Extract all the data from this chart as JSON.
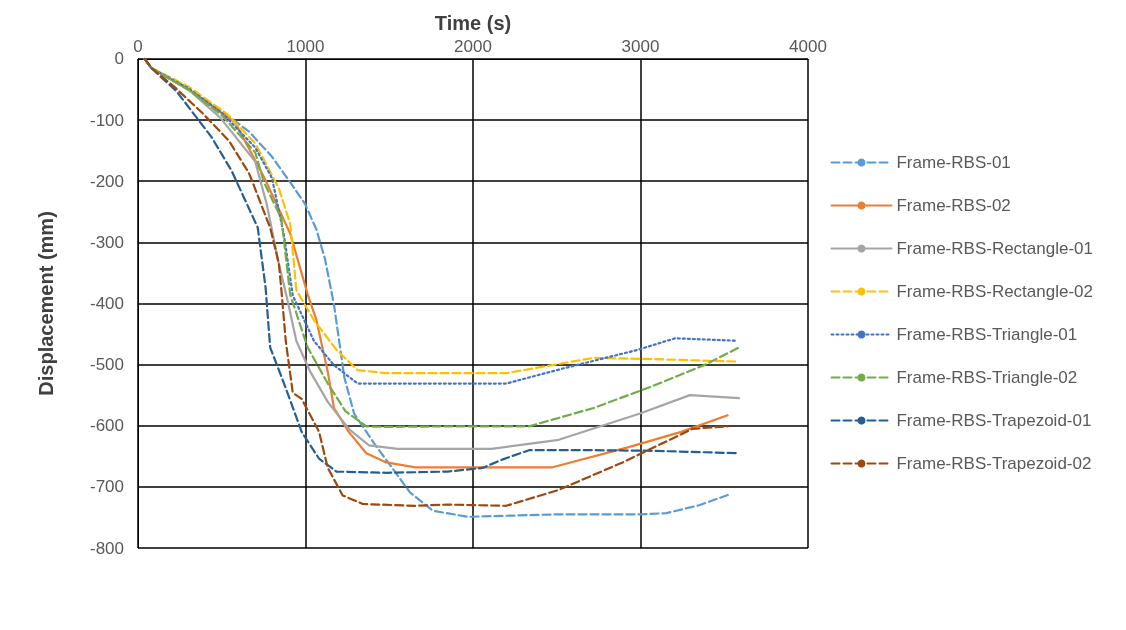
{
  "chart_data": {
    "type": "line",
    "xlabel": "Time (s)",
    "ylabel": "Displacement (mm)",
    "xlim": [
      0,
      4000
    ],
    "xticks": [
      0,
      1000,
      2000,
      3000,
      4000
    ],
    "ylim": [
      -800,
      0
    ],
    "yticks": [
      -800,
      -700,
      -600,
      -500,
      -400,
      -300,
      -200,
      -100,
      0
    ],
    "grid": true,
    "legend": "right",
    "marker": "none",
    "series": [
      {
        "name": "Frame-RBS-01",
        "color": "#5b9bd5",
        "line_style": "dashed",
        "x": [
          40,
          80,
          300,
          500,
          663,
          800,
          909,
          997,
          1065,
          1117,
          1170,
          1232,
          1290,
          1415,
          1520,
          1624,
          1760,
          1969,
          2500,
          3000,
          3154,
          3350,
          3535
        ],
        "values": [
          0,
          -15,
          -50,
          -85,
          -119,
          -160,
          -202,
          -237,
          -279,
          -328,
          -402,
          -521,
          -580,
          -631,
          -670,
          -709,
          -739,
          -749,
          -745,
          -745,
          -743,
          -730,
          -712
        ]
      },
      {
        "name": "Frame-RBS-02",
        "color": "#ed7d31",
        "line_style": "solid",
        "x": [
          40,
          80,
          300,
          580,
          752,
          909,
          1013,
          1065,
          1133,
          1170,
          1258,
          1363,
          1483,
          1655,
          1849,
          2475,
          2930,
          3243,
          3520
        ],
        "values": [
          0,
          -15,
          -50,
          -104,
          -193,
          -286,
          -385,
          -427,
          -512,
          -571,
          -610,
          -645,
          -660,
          -668,
          -668,
          -668,
          -635,
          -610,
          -583
        ]
      },
      {
        "name": "Frame-RBS-Rectangle-01",
        "color": "#a5a5a5",
        "line_style": "solid",
        "x": [
          40,
          80,
          300,
          491,
          700,
          768,
          841,
          893,
          945,
          1029,
          1133,
          1258,
          1379,
          1551,
          1849,
          2110,
          2512,
          2997,
          3295,
          3588
        ],
        "values": [
          0,
          -15,
          -50,
          -96,
          -168,
          -237,
          -335,
          -395,
          -461,
          -512,
          -561,
          -605,
          -632,
          -638,
          -638,
          -638,
          -623,
          -580,
          -550,
          -555
        ]
      },
      {
        "name": "Frame-RBS-Rectangle-02",
        "color": "#ffc000",
        "line_style": "dashed",
        "x": [
          40,
          80,
          300,
          527,
          700,
          841,
          909,
          945,
          1050,
          1185,
          1311,
          1483,
          1849,
          2198,
          2720,
          3065,
          3572
        ],
        "values": [
          0,
          -15,
          -45,
          -89,
          -138,
          -212,
          -270,
          -378,
          -427,
          -476,
          -509,
          -514,
          -514,
          -514,
          -489,
          -491,
          -495
        ]
      },
      {
        "name": "Frame-RBS-Triangle-01",
        "color": "#4472c4",
        "line_style": "dotted",
        "x": [
          40,
          80,
          300,
          500,
          700,
          800,
          872,
          924,
          1050,
          1170,
          1311,
          1849,
          2198,
          2543,
          2982,
          3206,
          3572
        ],
        "values": [
          0,
          -15,
          -48,
          -88,
          -145,
          -195,
          -289,
          -387,
          -461,
          -501,
          -531,
          -531,
          -531,
          -506,
          -476,
          -457,
          -461
        ]
      },
      {
        "name": "Frame-RBS-Triangle-02",
        "color": "#70ad47",
        "line_style": "dashed",
        "x": [
          40,
          80,
          300,
          500,
          700,
          752,
          856,
          909,
          1013,
          1133,
          1238,
          1363,
          1483,
          1849,
          2334,
          2720,
          3065,
          3379,
          3588
        ],
        "values": [
          0,
          -15,
          -50,
          -92,
          -153,
          -202,
          -261,
          -386,
          -472,
          -531,
          -576,
          -601,
          -602,
          -601,
          -601,
          -571,
          -536,
          -501,
          -472
        ]
      },
      {
        "name": "Frame-RBS-Trapezoid-01",
        "color": "#255e91",
        "line_style": "dashed",
        "x": [
          40,
          80,
          230,
          439,
          559,
          715,
          762,
          789,
          872,
          977,
          1081,
          1185,
          1483,
          1849,
          2057,
          2178,
          2334,
          2720,
          3065,
          3588
        ],
        "values": [
          0,
          -15,
          -53,
          -128,
          -183,
          -276,
          -375,
          -472,
          -531,
          -610,
          -654,
          -675,
          -677,
          -675,
          -669,
          -655,
          -640,
          -640,
          -641,
          -645
        ]
      },
      {
        "name": "Frame-RBS-Trapezoid-02",
        "color": "#9e480e",
        "line_style": "dashed",
        "x": [
          40,
          80,
          214,
          386,
          543,
          663,
          789,
          841,
          856,
          882,
          924,
          977,
          1081,
          1133,
          1222,
          1342,
          1655,
          1849,
          2198,
          2512,
          2893,
          3311,
          3520
        ],
        "values": [
          0,
          -15,
          -45,
          -89,
          -134,
          -187,
          -276,
          -335,
          -378,
          -461,
          -546,
          -556,
          -610,
          -669,
          -714,
          -728,
          -731,
          -729,
          -731,
          -705,
          -660,
          -605,
          -601
        ]
      }
    ]
  }
}
